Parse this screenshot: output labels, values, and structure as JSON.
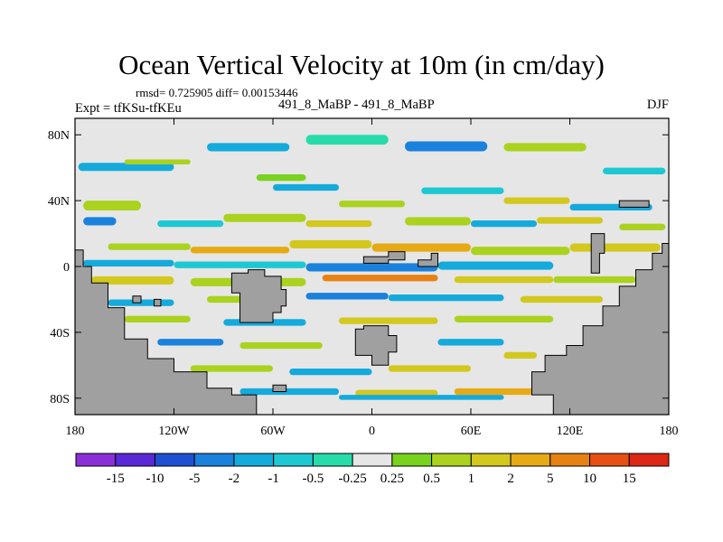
{
  "chart_data": {
    "type": "heatmap",
    "title": "Ocean Vertical Velocity at 10m (in cm/day)",
    "subtitle": "rmsd= 0.725905 diff= 0.00153446",
    "left_label": "Expt = tfKSu-tfKEu",
    "center_label": "491_8_MaBP - 491_8_MaBP",
    "right_label": "DJF",
    "x_ticks": [
      "180",
      "120W",
      "60W",
      "0",
      "60E",
      "120E",
      "180"
    ],
    "x_values": [
      -180,
      -120,
      -60,
      0,
      60,
      120,
      180
    ],
    "y_ticks": [
      "80N",
      "40N",
      "0",
      "40S",
      "80S"
    ],
    "y_values": [
      80,
      40,
      0,
      -40,
      -80
    ],
    "xlim": [
      -180,
      180
    ],
    "ylim": [
      -90,
      90
    ],
    "colorbar": {
      "labels": [
        "-15",
        "-10",
        "-5",
        "-2",
        "-1",
        "-0.5",
        "-0.25",
        "0.25",
        "0.5",
        "1",
        "2",
        "5",
        "10",
        "15"
      ],
      "colors": [
        "#8c2ed8",
        "#5a28d6",
        "#1e50d2",
        "#1a82dc",
        "#14aadc",
        "#1ec8d2",
        "#28dcaa",
        "#e6e6e6",
        "#78d21e",
        "#aad21e",
        "#d2c81e",
        "#e6aa14",
        "#e68214",
        "#e65014",
        "#dc2814"
      ]
    },
    "land_color": "#a0a0a0",
    "bands": [
      {
        "lon": [
          -178,
          -120
        ],
        "lat": [
          63,
          58
        ],
        "c": 4
      },
      {
        "lon": [
          -150,
          -110
        ],
        "lat": [
          65,
          62
        ],
        "c": 9
      },
      {
        "lon": [
          -100,
          -50
        ],
        "lat": [
          75,
          70
        ],
        "c": 4
      },
      {
        "lon": [
          -40,
          10
        ],
        "lat": [
          80,
          74
        ],
        "c": 6
      },
      {
        "lon": [
          20,
          70
        ],
        "lat": [
          76,
          70
        ],
        "c": 3
      },
      {
        "lon": [
          80,
          130
        ],
        "lat": [
          75,
          70
        ],
        "c": 9
      },
      {
        "lon": [
          140,
          178
        ],
        "lat": [
          60,
          56
        ],
        "c": 5
      },
      {
        "lon": [
          -70,
          -40
        ],
        "lat": [
          56,
          52
        ],
        "c": 8
      },
      {
        "lon": [
          -60,
          -20
        ],
        "lat": [
          50,
          46
        ],
        "c": 4
      },
      {
        "lon": [
          -20,
          20
        ],
        "lat": [
          40,
          36
        ],
        "c": 9
      },
      {
        "lon": [
          30,
          80
        ],
        "lat": [
          48,
          44
        ],
        "c": 5
      },
      {
        "lon": [
          80,
          120
        ],
        "lat": [
          42,
          38
        ],
        "c": 10
      },
      {
        "lon": [
          120,
          170
        ],
        "lat": [
          38,
          34
        ],
        "c": 4
      },
      {
        "lon": [
          -175,
          -140
        ],
        "lat": [
          40,
          34
        ],
        "c": 9
      },
      {
        "lon": [
          -175,
          -155
        ],
        "lat": [
          30,
          25
        ],
        "c": 3
      },
      {
        "lon": [
          -130,
          -90
        ],
        "lat": [
          28,
          24
        ],
        "c": 5
      },
      {
        "lon": [
          -90,
          -40
        ],
        "lat": [
          32,
          27
        ],
        "c": 9
      },
      {
        "lon": [
          -40,
          0
        ],
        "lat": [
          28,
          24
        ],
        "c": 10
      },
      {
        "lon": [
          20,
          60
        ],
        "lat": [
          30,
          25
        ],
        "c": 9
      },
      {
        "lon": [
          60,
          100
        ],
        "lat": [
          28,
          24
        ],
        "c": 4
      },
      {
        "lon": [
          100,
          140
        ],
        "lat": [
          30,
          26
        ],
        "c": 10
      },
      {
        "lon": [
          150,
          178
        ],
        "lat": [
          26,
          22
        ],
        "c": 9
      },
      {
        "lon": [
          -160,
          -110
        ],
        "lat": [
          14,
          10
        ],
        "c": 9
      },
      {
        "lon": [
          -110,
          -50
        ],
        "lat": [
          12,
          8
        ],
        "c": 11
      },
      {
        "lon": [
          -50,
          0
        ],
        "lat": [
          16,
          11
        ],
        "c": 10
      },
      {
        "lon": [
          0,
          60
        ],
        "lat": [
          14,
          9
        ],
        "c": 11
      },
      {
        "lon": [
          60,
          120
        ],
        "lat": [
          12,
          7
        ],
        "c": 9
      },
      {
        "lon": [
          120,
          175
        ],
        "lat": [
          14,
          9
        ],
        "c": 10
      },
      {
        "lon": [
          -175,
          -120
        ],
        "lat": [
          4,
          0
        ],
        "c": 4
      },
      {
        "lon": [
          -120,
          -40
        ],
        "lat": [
          3,
          -1
        ],
        "c": 5
      },
      {
        "lon": [
          -40,
          40
        ],
        "lat": [
          2,
          -3
        ],
        "c": 3
      },
      {
        "lon": [
          40,
          110
        ],
        "lat": [
          3,
          -2
        ],
        "c": 4
      },
      {
        "lon": [
          -170,
          -120
        ],
        "lat": [
          -6,
          -11
        ],
        "c": 10
      },
      {
        "lon": [
          -110,
          -40
        ],
        "lat": [
          -7,
          -12
        ],
        "c": 9
      },
      {
        "lon": [
          -30,
          40
        ],
        "lat": [
          -5,
          -9
        ],
        "c": 12
      },
      {
        "lon": [
          50,
          110
        ],
        "lat": [
          -6,
          -10
        ],
        "c": 10
      },
      {
        "lon": [
          110,
          160
        ],
        "lat": [
          -6,
          -10
        ],
        "c": 9
      },
      {
        "lon": [
          -160,
          -120
        ],
        "lat": [
          -20,
          -24
        ],
        "c": 4
      },
      {
        "lon": [
          -100,
          -70
        ],
        "lat": [
          -18,
          -22
        ],
        "c": 9
      },
      {
        "lon": [
          -40,
          10
        ],
        "lat": [
          -16,
          -20
        ],
        "c": 3
      },
      {
        "lon": [
          10,
          80
        ],
        "lat": [
          -17,
          -21
        ],
        "c": 4
      },
      {
        "lon": [
          90,
          140
        ],
        "lat": [
          -18,
          -22
        ],
        "c": 10
      },
      {
        "lon": [
          -150,
          -110
        ],
        "lat": [
          -30,
          -34
        ],
        "c": 9
      },
      {
        "lon": [
          -90,
          -40
        ],
        "lat": [
          -32,
          -36
        ],
        "c": 4
      },
      {
        "lon": [
          -20,
          40
        ],
        "lat": [
          -31,
          -35
        ],
        "c": 10
      },
      {
        "lon": [
          50,
          110
        ],
        "lat": [
          -30,
          -34
        ],
        "c": 9
      },
      {
        "lon": [
          -130,
          -90
        ],
        "lat": [
          -44,
          -48
        ],
        "c": 3
      },
      {
        "lon": [
          -80,
          -30
        ],
        "lat": [
          -46,
          -50
        ],
        "c": 9
      },
      {
        "lon": [
          40,
          80
        ],
        "lat": [
          -44,
          -48
        ],
        "c": 4
      },
      {
        "lon": [
          80,
          100
        ],
        "lat": [
          -52,
          -56
        ],
        "c": 10
      },
      {
        "lon": [
          -110,
          -60
        ],
        "lat": [
          -60,
          -64
        ],
        "c": 9
      },
      {
        "lon": [
          -50,
          0
        ],
        "lat": [
          -62,
          -66
        ],
        "c": 4
      },
      {
        "lon": [
          10,
          60
        ],
        "lat": [
          -60,
          -64
        ],
        "c": 10
      },
      {
        "lon": [
          -80,
          -20
        ],
        "lat": [
          -74,
          -78
        ],
        "c": 4
      },
      {
        "lon": [
          -10,
          40
        ],
        "lat": [
          -75,
          -79
        ],
        "c": 10
      },
      {
        "lon": [
          50,
          100
        ],
        "lat": [
          -74,
          -78
        ],
        "c": 11
      },
      {
        "lon": [
          -20,
          80
        ],
        "lat": [
          -78,
          -81
        ],
        "c": 4
      }
    ],
    "land": [
      {
        "name": "west-continent",
        "points": [
          [
            -180,
            10
          ],
          [
            -180,
            -90
          ],
          [
            -70,
            -90
          ],
          [
            -70,
            -78
          ],
          [
            -85,
            -78
          ],
          [
            -85,
            -74
          ],
          [
            -100,
            -74
          ],
          [
            -100,
            -64
          ],
          [
            -120,
            -64
          ],
          [
            -120,
            -56
          ],
          [
            -136,
            -56
          ],
          [
            -136,
            -44
          ],
          [
            -150,
            -44
          ],
          [
            -150,
            -25
          ],
          [
            -160,
            -25
          ],
          [
            -160,
            -10
          ],
          [
            -170,
            -10
          ],
          [
            -170,
            0
          ],
          [
            -175,
            0
          ],
          [
            -175,
            10
          ]
        ]
      },
      {
        "name": "east-continent",
        "points": [
          [
            180,
            14
          ],
          [
            180,
            -90
          ],
          [
            110,
            -90
          ],
          [
            110,
            -78
          ],
          [
            97,
            -78
          ],
          [
            97,
            -64
          ],
          [
            105,
            -64
          ],
          [
            105,
            -54
          ],
          [
            118,
            -54
          ],
          [
            118,
            -48
          ],
          [
            128,
            -48
          ],
          [
            128,
            -36
          ],
          [
            140,
            -36
          ],
          [
            140,
            -24
          ],
          [
            150,
            -24
          ],
          [
            150,
            -12
          ],
          [
            160,
            -12
          ],
          [
            160,
            -2
          ],
          [
            170,
            -2
          ],
          [
            170,
            8
          ],
          [
            176,
            8
          ],
          [
            176,
            14
          ]
        ]
      },
      {
        "name": "west-island",
        "points": [
          [
            -85,
            -4
          ],
          [
            -85,
            -16
          ],
          [
            -80,
            -16
          ],
          [
            -80,
            -34
          ],
          [
            -60,
            -34
          ],
          [
            -60,
            -28
          ],
          [
            -55,
            -28
          ],
          [
            -55,
            -24
          ],
          [
            -52,
            -24
          ],
          [
            -52,
            -14
          ],
          [
            -55,
            -14
          ],
          [
            -55,
            -6
          ],
          [
            -65,
            -6
          ],
          [
            -65,
            -2
          ],
          [
            -75,
            -2
          ],
          [
            -75,
            -4
          ]
        ]
      },
      {
        "name": "south-island",
        "points": [
          [
            -10,
            -38
          ],
          [
            -10,
            -54
          ],
          [
            0,
            -54
          ],
          [
            0,
            -60
          ],
          [
            10,
            -60
          ],
          [
            10,
            -52
          ],
          [
            15,
            -52
          ],
          [
            15,
            -42
          ],
          [
            10,
            -42
          ],
          [
            10,
            -36
          ],
          [
            -5,
            -36
          ],
          [
            -5,
            -38
          ]
        ]
      },
      {
        "name": "north-isle-a",
        "points": [
          [
            -5,
            6
          ],
          [
            -5,
            2
          ],
          [
            10,
            2
          ],
          [
            10,
            4
          ],
          [
            20,
            4
          ],
          [
            20,
            9
          ],
          [
            10,
            9
          ],
          [
            10,
            6
          ]
        ]
      },
      {
        "name": "north-isle-b",
        "points": [
          [
            28,
            0
          ],
          [
            28,
            4
          ],
          [
            36,
            4
          ],
          [
            36,
            8
          ],
          [
            40,
            8
          ],
          [
            40,
            0
          ]
        ]
      },
      {
        "name": "east-column",
        "points": [
          [
            133,
            -4
          ],
          [
            133,
            20
          ],
          [
            141,
            20
          ],
          [
            141,
            8
          ],
          [
            138,
            8
          ],
          [
            138,
            -4
          ]
        ]
      },
      {
        "name": "ne-isle",
        "points": [
          [
            150,
            36
          ],
          [
            150,
            40
          ],
          [
            168,
            40
          ],
          [
            168,
            36
          ]
        ]
      },
      {
        "name": "sw-isle-a",
        "points": [
          [
            -145,
            -18
          ],
          [
            -145,
            -22
          ],
          [
            -140,
            -22
          ],
          [
            -140,
            -18
          ]
        ]
      },
      {
        "name": "sw-isle-b",
        "points": [
          [
            -132,
            -20
          ],
          [
            -132,
            -24
          ],
          [
            -128,
            -24
          ],
          [
            -128,
            -20
          ]
        ]
      },
      {
        "name": "south-isle",
        "points": [
          [
            -60,
            -72
          ],
          [
            -60,
            -76
          ],
          [
            -52,
            -76
          ],
          [
            -52,
            -72
          ]
        ]
      }
    ]
  }
}
